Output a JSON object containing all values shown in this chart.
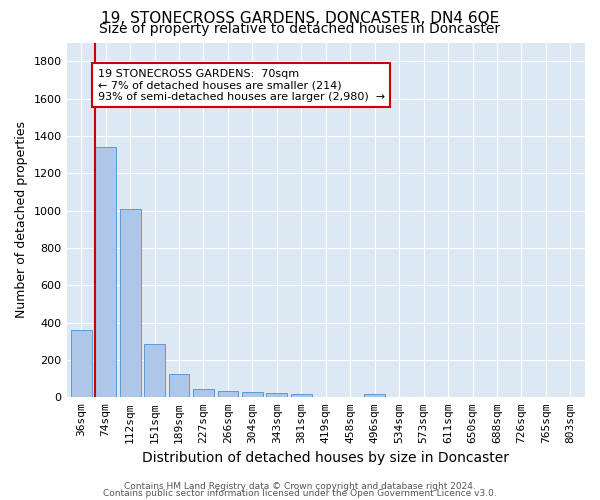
{
  "title": "19, STONECROSS GARDENS, DONCASTER, DN4 6QE",
  "subtitle": "Size of property relative to detached houses in Doncaster",
  "xlabel": "Distribution of detached houses by size in Doncaster",
  "ylabel": "Number of detached properties",
  "categories": [
    "36sqm",
    "74sqm",
    "112sqm",
    "151sqm",
    "189sqm",
    "227sqm",
    "266sqm",
    "304sqm",
    "343sqm",
    "381sqm",
    "419sqm",
    "458sqm",
    "496sqm",
    "534sqm",
    "573sqm",
    "611sqm",
    "650sqm",
    "688sqm",
    "726sqm",
    "765sqm",
    "803sqm"
  ],
  "values": [
    360,
    1340,
    1010,
    285,
    125,
    42,
    35,
    28,
    22,
    18,
    0,
    0,
    20,
    0,
    0,
    0,
    0,
    0,
    0,
    0,
    0
  ],
  "bar_color": "#aec6e8",
  "bar_edge_color": "#5b9bd5",
  "vline_color": "#cc0000",
  "vline_x_index": 1,
  "annotation_text": "19 STONECROSS GARDENS:  70sqm\n← 7% of detached houses are smaller (214)\n93% of semi-detached houses are larger (2,980)  →",
  "annotation_box_color": "#cc0000",
  "ylim": [
    0,
    1900
  ],
  "yticks": [
    0,
    200,
    400,
    600,
    800,
    1000,
    1200,
    1400,
    1600,
    1800
  ],
  "footer_line1": "Contains HM Land Registry data © Crown copyright and database right 2024.",
  "footer_line2": "Contains public sector information licensed under the Open Government Licence v3.0.",
  "bg_color": "#dce9f5",
  "grid_color": "#ffffff",
  "title_fontsize": 11,
  "subtitle_fontsize": 10,
  "tick_fontsize": 8,
  "ylabel_fontsize": 9,
  "xlabel_fontsize": 10,
  "footer_fontsize": 6.5
}
